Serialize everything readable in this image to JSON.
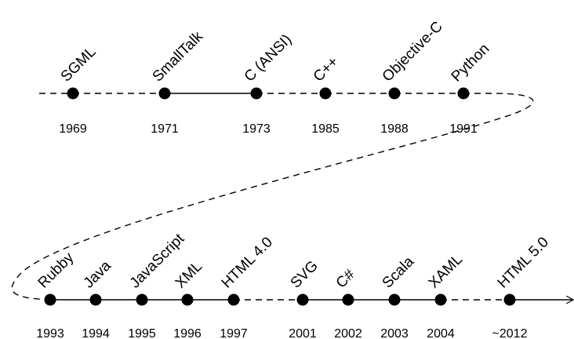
{
  "colors": {
    "line": "#000000",
    "dot": "#000000",
    "background": "#ffffff"
  },
  "timeline": {
    "top_row": [
      {
        "language": "SGML",
        "year": "1969",
        "segment_after": "dashed"
      },
      {
        "language": "SmallTalk",
        "year": "1971",
        "segment_after": "solid"
      },
      {
        "language": "C (ANSI)",
        "year": "1973",
        "segment_after": "dashed"
      },
      {
        "language": "C++",
        "year": "1985",
        "segment_after": "dashed"
      },
      {
        "language": "Objective-C",
        "year": "1988",
        "segment_after": "dashed"
      },
      {
        "language": "Python",
        "year": "1991",
        "segment_after": "dashed"
      }
    ],
    "bottom_row": [
      {
        "language": "Rubby",
        "year": "1993",
        "segment_after": "solid"
      },
      {
        "language": "Java",
        "year": "1994",
        "segment_after": "solid"
      },
      {
        "language": "JavaScript",
        "year": "1995",
        "segment_after": "solid"
      },
      {
        "language": "XML",
        "year": "1996",
        "segment_after": "solid"
      },
      {
        "language": "HTML 4.0",
        "year": "1997",
        "segment_after": "dashed"
      },
      {
        "language": "SVG",
        "year": "2001",
        "segment_after": "solid"
      },
      {
        "language": "C#",
        "year": "2002",
        "segment_after": "solid"
      },
      {
        "language": "Scala",
        "year": "2003",
        "segment_after": "solid"
      },
      {
        "language": "XAML",
        "year": "2004",
        "segment_after": "dashed"
      },
      {
        "language": "HTML 5.0",
        "year": "~2012",
        "segment_after": "solid-arrow"
      }
    ]
  }
}
